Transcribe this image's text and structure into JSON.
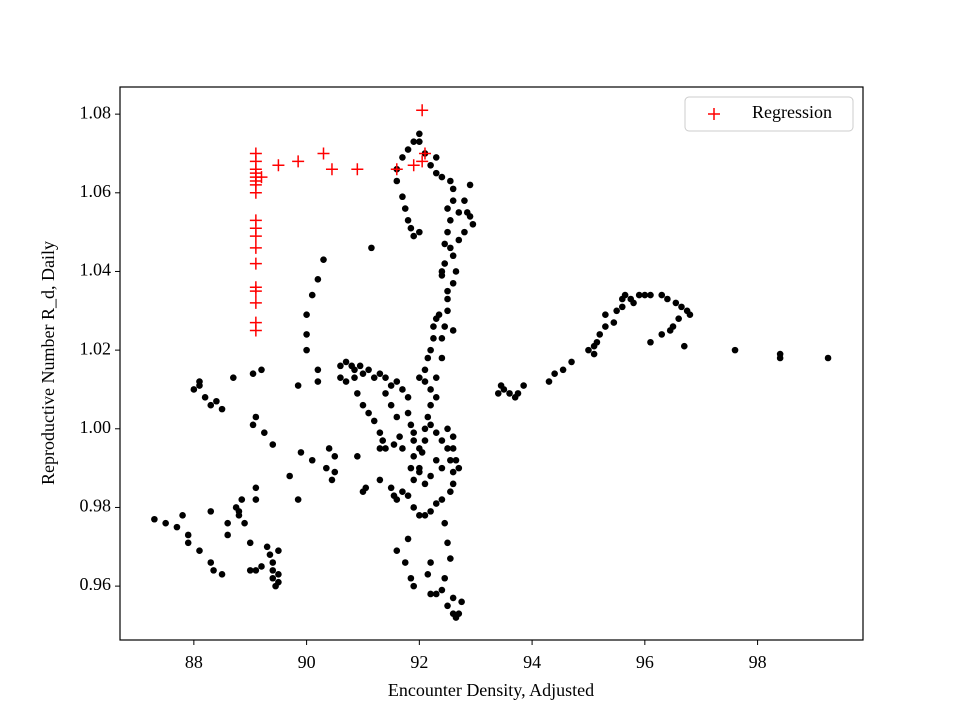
{
  "chart_data": {
    "type": "scatter",
    "xlabel": "Encounter Density, Adjusted",
    "ylabel": "Reproductive Number R_d, Daily",
    "xlim": [
      86.69,
      99.87
    ],
    "ylim": [
      0.9463,
      1.0869
    ],
    "xticks": [
      88,
      90,
      92,
      94,
      96,
      98
    ],
    "yticks": [
      0.96,
      0.98,
      {
        "value": 1.0,
        "label": "1.00"
      },
      1.02,
      1.04,
      1.06,
      1.08
    ],
    "grid": false,
    "legend": "upper right",
    "series": [
      {
        "color": "#000000",
        "marker": "circle",
        "x": [
          87.3,
          87.5,
          87.7,
          87.8,
          87.9,
          87.9,
          88.1,
          88.3,
          88.35,
          88.5,
          88.3,
          88.6,
          88.6,
          88.75,
          88.8,
          88.8,
          88.85,
          88.9,
          89.0,
          89.1,
          89.1,
          89.1,
          89.2,
          89.3,
          89.35,
          89.4,
          89.4,
          89.4,
          89.45,
          89.5,
          89.5,
          89.5,
          89.0,
          88.0,
          88.1,
          88.1,
          88.2,
          88.3,
          88.4,
          88.5,
          88.7,
          89.05,
          89.2,
          89.05,
          89.1,
          89.25,
          89.4,
          89.7,
          89.85,
          89.85,
          89.9,
          90.1,
          90.2,
          90.2,
          90.35,
          90.4,
          90.45,
          90.5,
          90.5,
          90.9,
          91.0,
          91.05,
          90.0,
          90.0,
          90.0,
          90.1,
          90.2,
          90.3,
          91.15,
          90.6,
          90.7,
          90.8,
          90.85,
          90.95,
          91.1,
          91.3,
          91.4,
          90.6,
          90.7,
          90.85,
          91.0,
          91.2,
          90.9,
          91.0,
          91.1,
          91.2,
          91.3,
          91.35,
          91.4,
          91.3,
          91.5,
          91.5,
          91.6,
          91.65,
          91.55,
          91.4,
          91.6,
          91.7,
          91.8,
          91.8,
          91.85,
          91.9,
          91.9,
          91.9,
          91.85,
          91.7,
          91.3,
          91.5,
          91.55,
          91.6,
          91.7,
          91.8,
          91.9,
          91.9,
          92.0,
          92.0,
          92.05,
          92.1,
          92.1,
          92.15,
          92.2,
          92.2,
          92.1,
          92.0,
          92.1,
          92.15,
          92.2,
          92.25,
          92.25,
          92.3,
          92.35,
          92.4,
          92.4,
          92.3,
          92.3,
          92.2,
          92.3,
          92.4,
          92.5,
          92.5,
          92.55,
          92.6,
          92.6,
          92.55,
          92.4,
          92.3,
          92.2,
          92.1,
          92.4,
          92.3,
          92.2,
          92.1,
          92.0,
          92.0,
          92.6,
          92.6,
          92.65,
          92.7,
          91.6,
          91.8,
          91.75,
          91.85,
          91.9,
          92.15,
          92.2,
          92.2,
          92.3,
          92.4,
          92.5,
          92.6,
          92.65,
          92.7,
          92.75,
          92.6,
          92.45,
          92.5,
          92.55,
          92.45,
          92.5,
          92.45,
          92.5,
          92.6,
          92.65,
          92.6,
          92.45,
          92.4,
          92.4,
          92.45,
          92.5,
          92.55,
          92.5,
          92.6,
          92.6,
          92.55,
          92.4,
          92.3,
          92.2,
          92.3,
          92.1,
          92.0,
          92.0,
          91.9,
          91.8,
          91.7,
          91.6,
          91.6,
          91.7,
          91.75,
          91.8,
          91.85,
          91.9,
          92.0,
          92.7,
          92.8,
          92.85,
          92.9,
          92.95,
          92.9,
          92.8,
          92.7,
          92.55,
          92.5,
          92.6,
          93.4,
          93.45,
          93.5,
          93.6,
          93.7,
          93.75,
          93.85,
          94.3,
          94.4,
          94.55,
          94.7,
          95.0,
          95.1,
          95.1,
          95.15,
          95.2,
          95.3,
          95.3,
          95.45,
          95.5,
          95.6,
          95.6,
          95.65,
          95.75,
          95.8,
          95.9,
          96.0,
          96.1,
          96.3,
          96.4,
          96.55,
          96.65,
          96.75,
          96.8,
          96.6,
          96.5,
          96.45,
          96.3,
          96.1,
          96.7,
          97.6,
          98.4,
          98.4,
          99.25
        ],
        "y": [
          0.977,
          0.976,
          0.975,
          0.978,
          0.973,
          0.971,
          0.969,
          0.966,
          0.964,
          0.963,
          0.979,
          0.973,
          0.976,
          0.98,
          0.979,
          0.978,
          0.982,
          0.976,
          0.971,
          0.982,
          0.985,
          0.964,
          0.965,
          0.97,
          0.968,
          0.966,
          0.964,
          0.962,
          0.96,
          0.961,
          0.963,
          0.969,
          0.964,
          1.01,
          1.012,
          1.011,
          1.008,
          1.006,
          1.007,
          1.005,
          1.013,
          1.014,
          1.015,
          1.001,
          1.003,
          0.999,
          0.996,
          0.988,
          0.982,
          1.011,
          0.994,
          0.992,
          1.015,
          1.012,
          0.99,
          0.995,
          0.987,
          0.989,
          0.993,
          0.993,
          0.984,
          0.985,
          1.02,
          1.024,
          1.029,
          1.034,
          1.038,
          1.043,
          1.046,
          1.016,
          1.017,
          1.016,
          1.015,
          1.016,
          1.015,
          1.014,
          1.013,
          1.013,
          1.012,
          1.013,
          1.014,
          1.013,
          1.009,
          1.006,
          1.004,
          1.002,
          0.999,
          0.997,
          0.995,
          0.995,
          1.011,
          1.006,
          1.003,
          0.998,
          0.996,
          1.009,
          1.012,
          1.01,
          1.008,
          1.004,
          1.001,
          0.999,
          0.997,
          0.993,
          0.99,
          0.995,
          0.987,
          0.985,
          0.983,
          0.982,
          0.984,
          0.983,
          0.987,
          0.98,
          0.978,
          0.989,
          0.994,
          0.997,
          1.0,
          1.003,
          1.006,
          1.01,
          1.012,
          1.013,
          1.015,
          1.018,
          1.02,
          1.023,
          1.026,
          1.028,
          1.029,
          1.023,
          1.018,
          1.013,
          1.008,
          1.001,
          0.999,
          0.997,
          1.0,
          0.995,
          0.992,
          0.989,
          0.986,
          0.984,
          0.982,
          0.981,
          0.979,
          0.978,
          0.99,
          0.992,
          0.988,
          0.986,
          0.99,
          0.995,
          0.995,
          0.998,
          0.992,
          0.99,
          0.969,
          0.972,
          0.966,
          0.962,
          0.96,
          0.963,
          0.966,
          0.958,
          0.958,
          0.959,
          0.955,
          0.953,
          0.952,
          0.953,
          0.956,
          0.957,
          0.976,
          0.971,
          0.967,
          0.962,
          1.033,
          1.026,
          1.035,
          1.037,
          1.04,
          1.044,
          1.042,
          1.04,
          1.039,
          1.047,
          1.05,
          1.053,
          1.056,
          1.058,
          1.061,
          1.063,
          1.064,
          1.065,
          1.067,
          1.069,
          1.07,
          1.073,
          1.075,
          1.073,
          1.071,
          1.069,
          1.066,
          1.063,
          1.059,
          1.056,
          1.053,
          1.051,
          1.049,
          1.05,
          1.048,
          1.05,
          1.055,
          1.054,
          1.052,
          1.062,
          1.058,
          1.055,
          1.046,
          1.03,
          1.025,
          1.009,
          1.011,
          1.01,
          1.009,
          1.008,
          1.009,
          1.011,
          1.012,
          1.014,
          1.015,
          1.017,
          1.02,
          1.019,
          1.021,
          1.022,
          1.024,
          1.026,
          1.029,
          1.027,
          1.03,
          1.031,
          1.033,
          1.034,
          1.033,
          1.032,
          1.034,
          1.034,
          1.034,
          1.034,
          1.033,
          1.032,
          1.031,
          1.03,
          1.029,
          1.028,
          1.026,
          1.025,
          1.024,
          1.022,
          1.021,
          1.02,
          1.019,
          1.018,
          1.018
        ]
      },
      {
        "name": "Regression",
        "color": "#ff0000",
        "marker": "plus",
        "x": [
          89.1,
          89.1,
          89.1,
          89.1,
          89.1,
          89.1,
          89.1,
          89.1,
          89.1,
          89.1,
          89.1,
          89.1,
          89.1,
          89.1,
          89.1,
          89.1,
          89.1,
          89.1,
          89.2,
          89.5,
          89.85,
          90.3,
          90.45,
          90.9,
          91.6,
          91.9,
          92.05,
          92.1,
          92.05
        ],
        "y": [
          1.07,
          1.068,
          1.066,
          1.065,
          1.064,
          1.063,
          1.062,
          1.06,
          1.053,
          1.051,
          1.049,
          1.046,
          1.042,
          1.036,
          1.035,
          1.032,
          1.027,
          1.025,
          1.064,
          1.067,
          1.068,
          1.07,
          1.066,
          1.066,
          1.066,
          1.067,
          1.068,
          1.07,
          1.081
        ]
      }
    ]
  }
}
